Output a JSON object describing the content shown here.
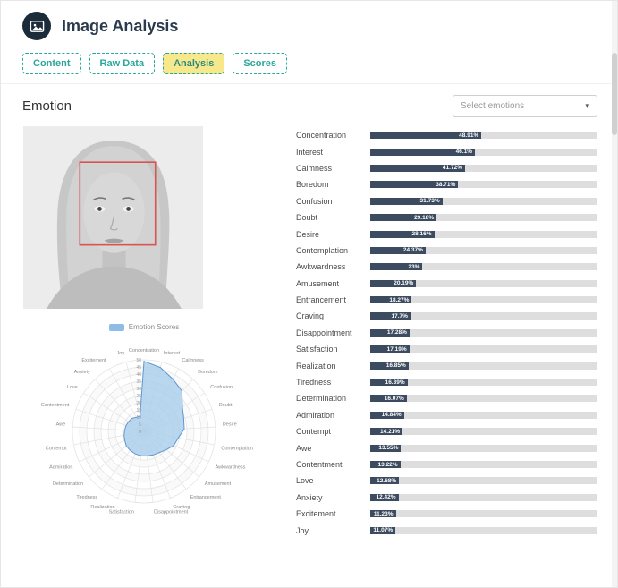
{
  "header": {
    "title": "Image Analysis"
  },
  "tabs": [
    {
      "label": "Content",
      "active": false
    },
    {
      "label": "Raw Data",
      "active": false
    },
    {
      "label": "Analysis",
      "active": true
    },
    {
      "label": "Scores",
      "active": false
    }
  ],
  "section": {
    "title": "Emotion"
  },
  "select": {
    "placeholder": "Select emotions"
  },
  "colors": {
    "bar_fill": "#3c4b5f",
    "bar_track": "#dedede",
    "tab_accent": "#2aa79b",
    "active_tab_bg": "#f7e88b",
    "radar_fill": "#a9cdec",
    "radar_stroke": "#5e97cf",
    "face_box": "#d9534f",
    "app_icon_bg": "#1c2b3a"
  },
  "chart_data": [
    {
      "type": "bar",
      "orientation": "horizontal",
      "xlim": [
        0,
        100
      ],
      "categories": [
        "Concentration",
        "Interest",
        "Calmness",
        "Boredom",
        "Confusion",
        "Doubt",
        "Desire",
        "Contemplation",
        "Awkwardness",
        "Amusement",
        "Entrancement",
        "Craving",
        "Disappointment",
        "Satisfaction",
        "Realization",
        "Tiredness",
        "Determination",
        "Admiration",
        "Contempt",
        "Awe",
        "Contentment",
        "Love",
        "Anxiety",
        "Excitement",
        "Joy"
      ],
      "values": [
        48.91,
        46.1,
        41.72,
        38.71,
        31.73,
        29.18,
        28.16,
        24.37,
        23,
        20.19,
        18.27,
        17.7,
        17.28,
        17.19,
        16.85,
        16.39,
        16.07,
        14.84,
        14.21,
        13.55,
        13.22,
        12.68,
        12.42,
        11.23,
        11.07
      ]
    },
    {
      "type": "radar",
      "legend": "Emotion Scores",
      "rmax": 50,
      "tick_step": 5,
      "categories": [
        "Concentration",
        "Interest",
        "Calmness",
        "Boredom",
        "Confusion",
        "Doubt",
        "Desire",
        "Contemplation",
        "Awkwardness",
        "Amusement",
        "Entrancement",
        "Craving",
        "Disappointment",
        "Satisfaction",
        "Realization",
        "Tiredness",
        "Determination",
        "Admiration",
        "Contempt",
        "Awe",
        "Contentment",
        "Love",
        "Anxiety",
        "Excitement",
        "Joy"
      ],
      "values": [
        48.91,
        46.1,
        41.72,
        38.71,
        31.73,
        29.18,
        28.16,
        24.37,
        23,
        20.19,
        18.27,
        17.7,
        17.28,
        17.19,
        16.85,
        16.39,
        16.07,
        14.84,
        14.21,
        13.55,
        13.22,
        12.68,
        12.42,
        11.23,
        11.07
      ]
    }
  ]
}
